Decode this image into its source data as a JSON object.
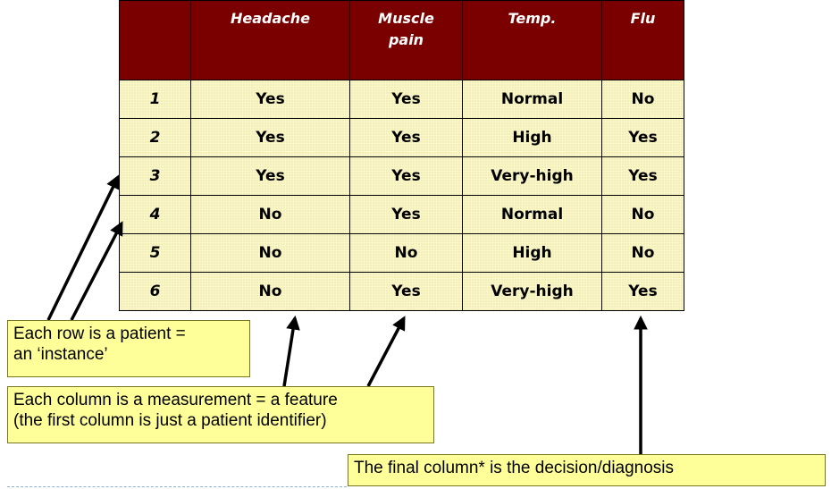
{
  "table": {
    "headers": [
      "",
      "Headache",
      "Muscle\npain",
      "Temp.",
      "Flu"
    ],
    "rows": [
      [
        "1",
        "Yes",
        "Yes",
        "Normal",
        "No"
      ],
      [
        "2",
        "Yes",
        "Yes",
        "High",
        "Yes"
      ],
      [
        "3",
        "Yes",
        "Yes",
        "Very-high",
        "Yes"
      ],
      [
        "4",
        "No",
        "Yes",
        "Normal",
        "No"
      ],
      [
        "5",
        "No",
        "No",
        "High",
        "No"
      ],
      [
        "6",
        "No",
        "Yes",
        "Very-high",
        "Yes"
      ]
    ]
  },
  "annotations": {
    "instance_note": "Each row is a patient =\nan ‘instance’",
    "feature_note": "Each column is a measurement = a feature\n(the first column is just a patient identifier)",
    "decision_note": "The final column* is the decision/diagnosis"
  },
  "colors": {
    "header_bg": "#7a0000",
    "cell_bg": "#fbf7c6",
    "note_bg": "#ffff99"
  }
}
